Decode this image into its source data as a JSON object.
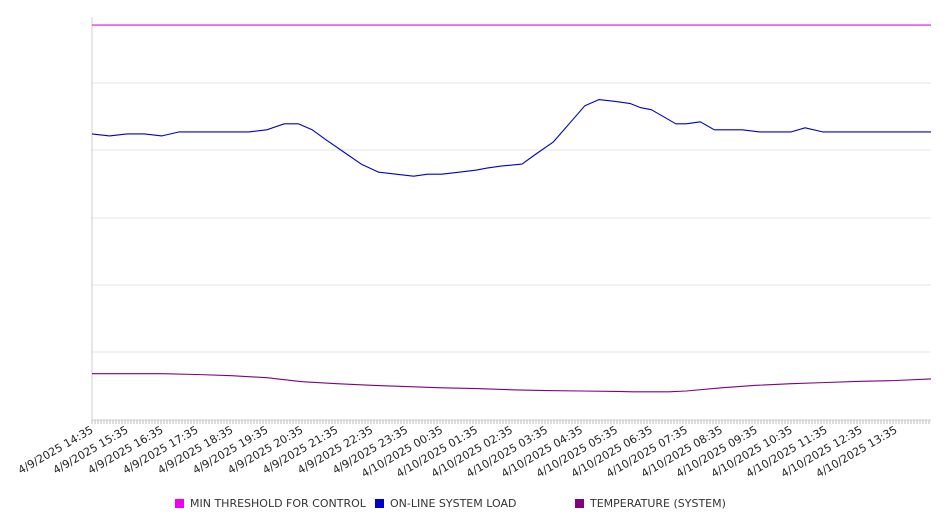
{
  "chart_data": {
    "type": "line",
    "title": "",
    "xlabel": "",
    "ylabel": "",
    "y_tick_labels_visible": false,
    "grid": {
      "horizontal": true,
      "vertical": false
    },
    "legend_placement": "bottom",
    "x_tick_labels": [
      "4/9/2025 14:35",
      "4/9/2025 15:35",
      "4/9/2025 16:35",
      "4/9/2025 17:35",
      "4/9/2025 18:35",
      "4/9/2025 19:35",
      "4/9/2025 20:35",
      "4/9/2025 21:35",
      "4/9/2025 22:35",
      "4/9/2025 23:35",
      "4/10/2025 00:35",
      "4/10/2025 01:35",
      "4/10/2025 02:35",
      "4/10/2025 03:35",
      "4/10/2025 04:35",
      "4/10/2025 05:35",
      "4/10/2025 06:35",
      "4/10/2025 07:35",
      "4/10/2025 08:35",
      "4/10/2025 09:35",
      "4/10/2025 10:35",
      "4/10/2025 11:35",
      "4/10/2025 12:35",
      "4/10/2025 13:35"
    ],
    "x_range": [
      0,
      24
    ],
    "y_range": [
      0,
      100
    ],
    "series": [
      {
        "name": "MIN THRESHOLD FOR CONTROL",
        "color": "#ee00ee",
        "x": [
          0,
          24
        ],
        "y": [
          98,
          98
        ]
      },
      {
        "name": "ON-LINE SYSTEM LOAD",
        "color": "#0000cc",
        "x": [
          0,
          0.5,
          1,
          1.5,
          2,
          2.5,
          3,
          3.5,
          4,
          4.5,
          5,
          5.5,
          5.9,
          6.3,
          6.7,
          7.2,
          7.7,
          8.2,
          8.7,
          9.2,
          9.6,
          10,
          10.5,
          11,
          11.3,
          11.7,
          12.3,
          12.7,
          13.2,
          13.7,
          14.1,
          14.5,
          15,
          15.4,
          15.7,
          16,
          16.3,
          16.7,
          17,
          17.4,
          17.8,
          18.2,
          18.6,
          19.1,
          19.6,
          20,
          20.4,
          20.9,
          21.3,
          21.7,
          22.2,
          22.7,
          23.2,
          23.6,
          24
        ],
        "y": [
          71,
          70.5,
          71,
          71,
          70.5,
          71.5,
          71.5,
          71.5,
          71.5,
          71.5,
          72,
          73.5,
          73.5,
          72,
          69.5,
          66.5,
          63.5,
          61.5,
          61,
          60.5,
          61,
          61,
          61.5,
          62,
          62.5,
          63,
          63.5,
          66,
          69,
          74,
          78,
          79.5,
          79,
          78.5,
          77.5,
          77,
          75.5,
          73.5,
          73.5,
          74,
          72,
          72,
          72,
          71.5,
          71.5,
          71.5,
          72.5,
          71.5,
          71.5,
          71.5,
          71.5,
          71.5,
          71.5,
          71.5,
          71.5
        ]
      },
      {
        "name": "TEMPERATURE (SYSTEM)",
        "color": "#800080",
        "x": [
          0,
          1,
          2,
          3,
          4,
          5,
          6,
          7,
          8,
          9,
          10,
          11,
          12,
          13,
          14,
          15,
          15.5,
          16,
          16.5,
          17,
          18,
          19,
          20,
          21,
          22,
          23,
          24
        ],
        "y": [
          11.5,
          11.5,
          11.5,
          11.3,
          11,
          10.5,
          9.5,
          9,
          8.6,
          8.3,
          8,
          7.8,
          7.5,
          7.3,
          7.2,
          7.1,
          7,
          7,
          7,
          7.2,
          8,
          8.6,
          9,
          9.3,
          9.6,
          9.8,
          10.2
        ]
      }
    ]
  }
}
